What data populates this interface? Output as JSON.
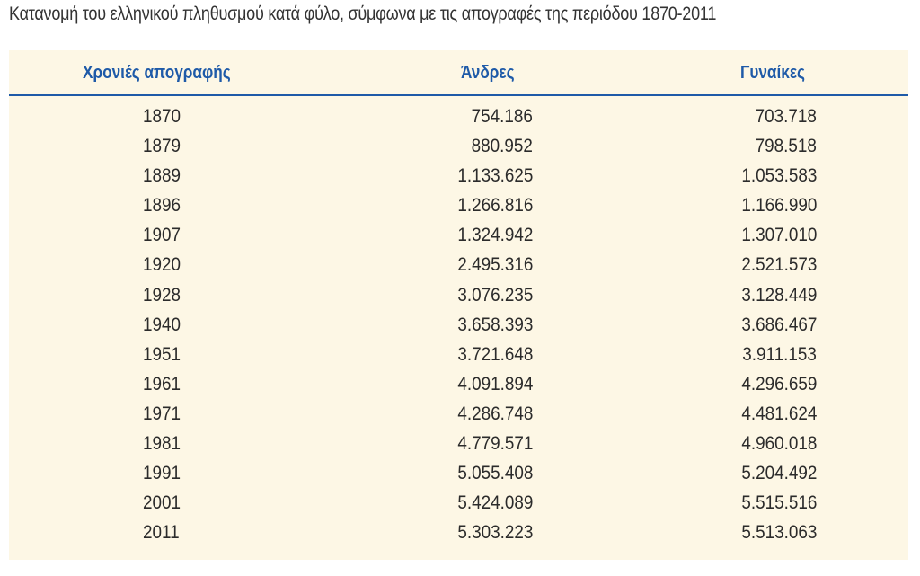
{
  "caption": "Κατανομή του ελληνικού πληθυσμού κατά φύλο, σύμφωνα με τις απογραφές της περιόδου 1870-2011",
  "colors": {
    "panel_background": "#fdf7e5",
    "header_text": "#1e5aa8",
    "header_rule": "#1e5aa8",
    "body_text": "#2b2b2b"
  },
  "table": {
    "headers": {
      "year": "Χρονιές απογραφής",
      "men": "Άνδρες",
      "women": "Γυναίκες"
    },
    "rows": [
      {
        "year": "1870",
        "men": "754.186",
        "women": "703.718"
      },
      {
        "year": "1879",
        "men": "880.952",
        "women": "798.518"
      },
      {
        "year": "1889",
        "men": "1.133.625",
        "women": "1.053.583"
      },
      {
        "year": "1896",
        "men": "1.266.816",
        "women": "1.166.990"
      },
      {
        "year": "1907",
        "men": "1.324.942",
        "women": "1.307.010"
      },
      {
        "year": "1920",
        "men": "2.495.316",
        "women": "2.521.573"
      },
      {
        "year": "1928",
        "men": "3.076.235",
        "women": "3.128.449"
      },
      {
        "year": "1940",
        "men": "3.658.393",
        "women": "3.686.467"
      },
      {
        "year": "1951",
        "men": "3.721.648",
        "women": "3.911.153"
      },
      {
        "year": "1961",
        "men": "4.091.894",
        "women": "4.296.659"
      },
      {
        "year": "1971",
        "men": "4.286.748",
        "women": "4.481.624"
      },
      {
        "year": "1981",
        "men": "4.779.571",
        "women": "4.960.018"
      },
      {
        "year": "1991",
        "men": "5.055.408",
        "women": "5.204.492"
      },
      {
        "year": "2001",
        "men": "5.424.089",
        "women": "5.515.516"
      },
      {
        "year": "2011",
        "men": "5.303.223",
        "women": "5.513.063"
      }
    ]
  }
}
